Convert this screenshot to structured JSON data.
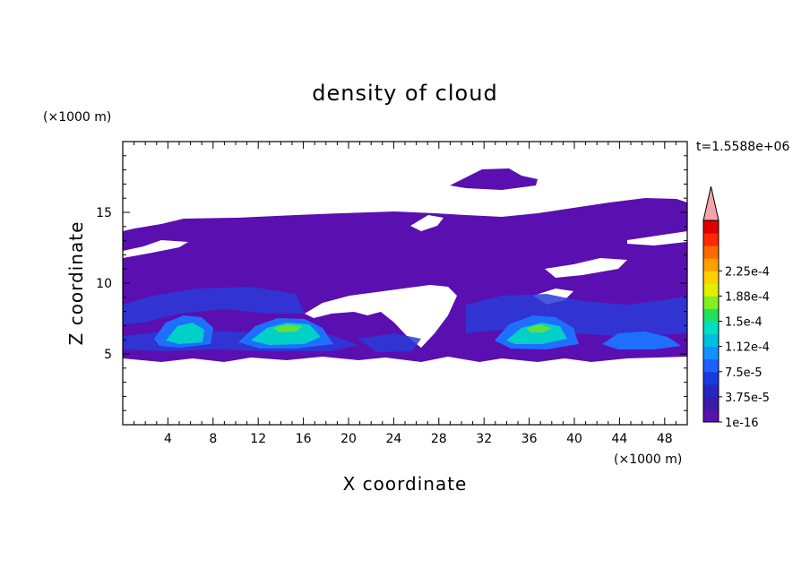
{
  "chart_data": {
    "type": "heatmap",
    "title": "density of cloud",
    "xlabel": "X coordinate",
    "ylabel": "Z coordinate",
    "x_unit": "(×1000 m)",
    "y_unit": "(×1000 m)",
    "time_label": "t=1.5588e+06",
    "xlim": [
      0,
      50
    ],
    "ylim": [
      0,
      20
    ],
    "x_ticks": [
      4,
      8,
      12,
      16,
      20,
      24,
      28,
      32,
      36,
      40,
      44,
      48
    ],
    "y_ticks": [
      5,
      10,
      15
    ],
    "colorbar": {
      "labels": [
        "1e-16",
        "3.75e-5",
        "7.5e-5",
        "1.12e-4",
        "1.5e-4",
        "1.88e-4",
        "2.25e-4"
      ],
      "colors": [
        "#5a0fb0",
        "#3c1aa8",
        "#2626c0",
        "#1a3ae0",
        "#1f5fff",
        "#1590ff",
        "#00c0e0",
        "#00e0c0",
        "#20e060",
        "#80f020",
        "#e0f000",
        "#ffd000",
        "#ffa000",
        "#ff6a00",
        "#ff2a00",
        "#e00000"
      ],
      "extend_color": "#f4a3a8"
    },
    "colors": {
      "low": "#5a0fb0",
      "mid_low": "#2a3ad8",
      "mid": "#1f6fff",
      "high": "#00d0c8",
      "peak": "#60e040"
    }
  }
}
